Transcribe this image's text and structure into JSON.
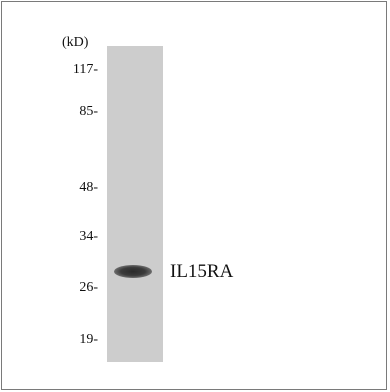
{
  "blot": {
    "unit_label": "(kD)",
    "markers": [
      "117-",
      "85-",
      "48-",
      "34-",
      "26-",
      "19-"
    ],
    "protein_label": "IL15RA"
  }
}
